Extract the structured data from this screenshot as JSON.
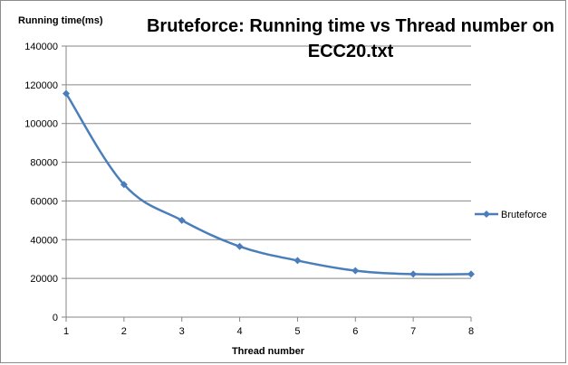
{
  "chart_data": {
    "type": "line",
    "title_line1": "Bruteforce: Running time vs Thread number on",
    "title_line2": "ECC20.txt",
    "xlabel": "Thread number",
    "ylabel": "Running time(ms)",
    "x": [
      1,
      2,
      3,
      4,
      5,
      6,
      7,
      8
    ],
    "xticks": [
      "1",
      "2",
      "3",
      "4",
      "5",
      "6",
      "7",
      "8"
    ],
    "ylim": [
      0,
      140000
    ],
    "yticks": [
      0,
      20000,
      40000,
      60000,
      80000,
      100000,
      120000,
      140000
    ],
    "ytick_labels": [
      "0",
      "20000",
      "40000",
      "60000",
      "80000",
      "100000",
      "120000",
      "140000"
    ],
    "grid": "horizontal",
    "legend_position": "right",
    "series": [
      {
        "name": "Bruteforce",
        "color": "#4a7ebb",
        "marker": "diamond",
        "smooth": true,
        "values": [
          115500,
          68500,
          50000,
          36500,
          29200,
          24000,
          22200,
          22200
        ]
      }
    ]
  }
}
